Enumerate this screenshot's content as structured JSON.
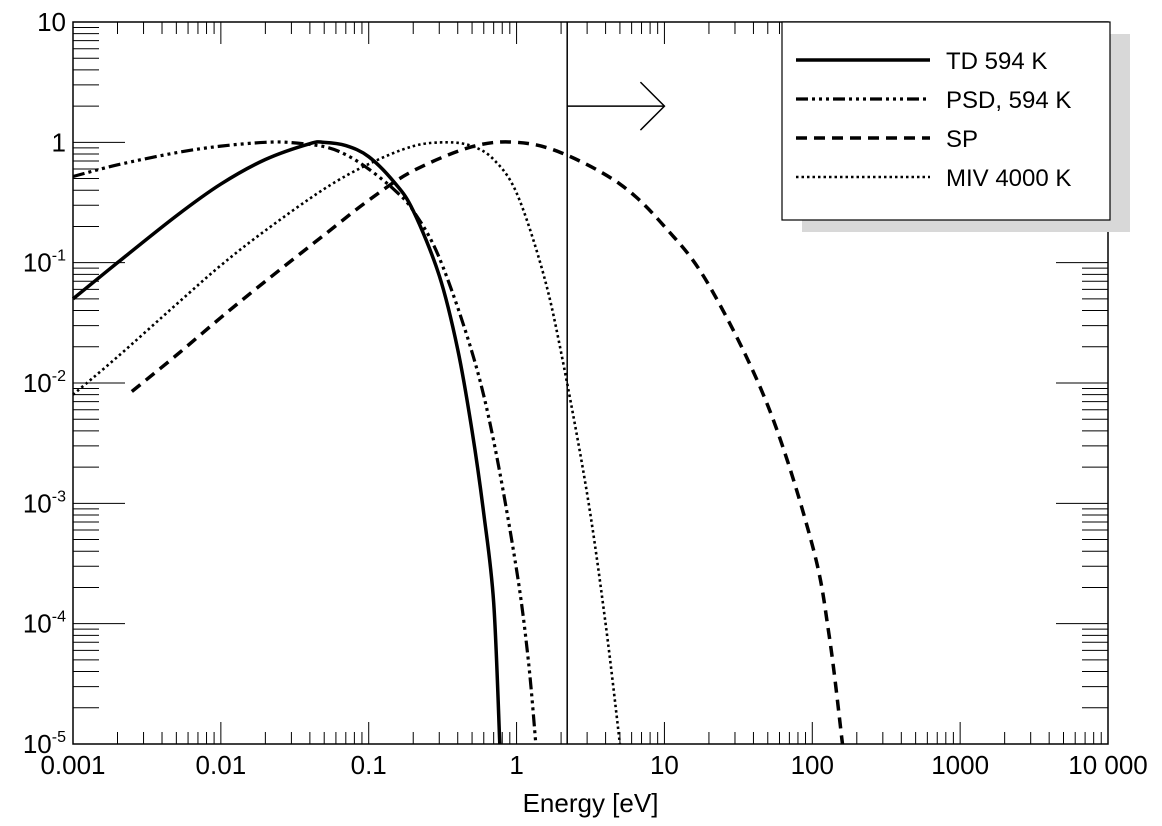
{
  "chart_data": {
    "type": "line",
    "title": "",
    "xlabel": "Energy [eV]",
    "ylabel": "",
    "xscale": "log",
    "yscale": "log",
    "xlim": [
      0.001,
      10000
    ],
    "ylim": [
      1e-05,
      10
    ],
    "grid": false,
    "legend_position": "top-right",
    "x_tick_labels": [
      "0.001",
      "0.01",
      "0.1",
      "1",
      "10",
      "100",
      "1000",
      "10 000"
    ],
    "x_tick_values": [
      0.001,
      0.01,
      0.1,
      1,
      10,
      100,
      1000,
      10000
    ],
    "y_tick_labels": [
      {
        "base": "10",
        "exp": "-5"
      },
      {
        "base": "10",
        "exp": "-4"
      },
      {
        "base": "10",
        "exp": "-3"
      },
      {
        "base": "10",
        "exp": "-2"
      },
      {
        "base": "10",
        "exp": "-1"
      },
      {
        "base": "1",
        "exp": ""
      },
      {
        "base": "10",
        "exp": ""
      }
    ],
    "y_tick_values": [
      1e-05,
      0.0001,
      0.001,
      0.01,
      0.1,
      1,
      10
    ],
    "series": [
      {
        "name": "TD 594 K",
        "style": "solid",
        "x": [
          0.001,
          0.002,
          0.005,
          0.01,
          0.02,
          0.04,
          0.05,
          0.07,
          0.1,
          0.15,
          0.2,
          0.3,
          0.4,
          0.5,
          0.6,
          0.7,
          0.77
        ],
        "y": [
          0.05,
          0.1,
          0.245,
          0.45,
          0.72,
          0.975,
          1.0,
          0.94,
          0.76,
          0.46,
          0.27,
          0.078,
          0.019,
          0.004,
          0.00082,
          0.00015,
          1e-05
        ]
      },
      {
        "name": "PSD, 594 K",
        "style": "dash-dot",
        "x": [
          0.001,
          0.002,
          0.005,
          0.01,
          0.02,
          0.03,
          0.05,
          0.07,
          0.1,
          0.15,
          0.2,
          0.3,
          0.5,
          0.7,
          1.0,
          1.2,
          1.35
        ],
        "y": [
          0.52,
          0.65,
          0.82,
          0.93,
          1.0,
          0.995,
          0.92,
          0.79,
          0.6,
          0.4,
          0.27,
          0.11,
          0.018,
          0.0033,
          0.00028,
          5e-05,
          1e-05
        ]
      },
      {
        "name": "SP",
        "style": "dashed",
        "x": [
          0.0025,
          0.005,
          0.01,
          0.02,
          0.05,
          0.1,
          0.2,
          0.5,
          1,
          2,
          5,
          10,
          20,
          50,
          100,
          130,
          160
        ],
        "y": [
          0.0085,
          0.017,
          0.035,
          0.07,
          0.17,
          0.33,
          0.58,
          0.92,
          1.0,
          0.82,
          0.45,
          0.2,
          0.065,
          0.0065,
          0.00045,
          8e-05,
          1e-05
        ]
      },
      {
        "name": "MIV 4000 K",
        "style": "dotted",
        "x": [
          0.001,
          0.002,
          0.005,
          0.01,
          0.02,
          0.05,
          0.1,
          0.2,
          0.34,
          0.5,
          0.7,
          1.0,
          1.5,
          2,
          3,
          4,
          5
        ],
        "y": [
          0.008,
          0.0165,
          0.045,
          0.095,
          0.185,
          0.41,
          0.66,
          0.93,
          1.0,
          0.93,
          0.72,
          0.38,
          0.085,
          0.018,
          0.0012,
          0.0001,
          1e-05
        ]
      }
    ],
    "annotations": [
      {
        "type": "vertical-line",
        "x": 2.2
      },
      {
        "type": "arrow",
        "from_x": 2.2,
        "to_x": 10,
        "y": 2,
        "direction": "right"
      }
    ]
  }
}
